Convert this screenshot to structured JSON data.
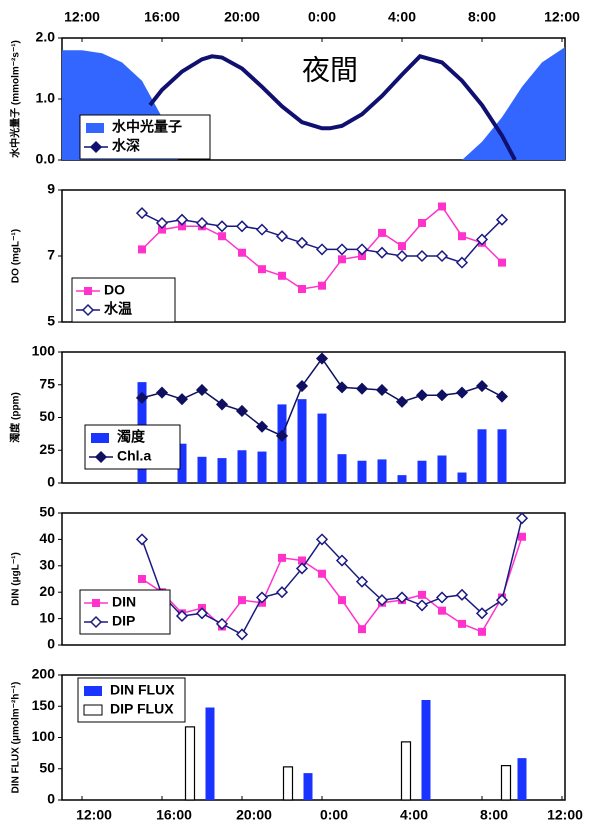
{
  "chart_data": [
    {
      "type": "combo",
      "title": "夜間",
      "ylabel": "水中光量子 (mmolm⁻²s⁻¹)",
      "xlim": [
        -1,
        24.15
      ],
      "xticks": [
        {
          "value": 0,
          "label": "12:00"
        },
        {
          "value": 4,
          "label": "16:00"
        },
        {
          "value": 8,
          "label": "20:00"
        },
        {
          "value": 12,
          "label": "0:00"
        },
        {
          "value": 16,
          "label": "4:00"
        },
        {
          "value": 20,
          "label": "8:00"
        },
        {
          "value": 24,
          "label": "12:00"
        }
      ],
      "ylim": [
        0,
        2
      ],
      "yticks": [
        {
          "value": 0,
          "label": "0.0"
        },
        {
          "value": 1,
          "label": "1.0"
        },
        {
          "value": 2,
          "label": "2.0"
        }
      ],
      "series": [
        {
          "name": "水中光量子",
          "type": "area",
          "color": "#3366ff",
          "marker": "none",
          "x": [
            -1,
            0,
            1,
            2,
            3,
            3.5,
            4,
            4.5,
            4.8,
            12,
            19,
            20,
            21,
            22,
            23,
            24.15
          ],
          "values": [
            1.8,
            1.8,
            1.75,
            1.6,
            1.3,
            1.0,
            0.7,
            0.3,
            0,
            null,
            0,
            0.3,
            0.7,
            1.2,
            1.6,
            1.85
          ]
        },
        {
          "name": "水深",
          "type": "line",
          "color": "#101070",
          "marker": "none",
          "x": [
            3.4,
            4,
            5,
            6,
            6.5,
            7,
            8,
            9,
            10,
            11,
            12,
            12.4,
            13,
            14,
            15,
            16,
            16.9,
            18,
            19,
            20,
            21,
            21.65
          ],
          "values": [
            0.9,
            1.15,
            1.45,
            1.65,
            1.7,
            1.68,
            1.5,
            1.2,
            0.88,
            0.62,
            0.52,
            0.52,
            0.56,
            0.75,
            1.05,
            1.4,
            1.7,
            1.6,
            1.3,
            0.9,
            0.4,
            0
          ]
        }
      ]
    },
    {
      "type": "line",
      "ylabel": "DO (mgL⁻¹)",
      "xlim": [
        -1,
        24.15
      ],
      "x": [
        3,
        4,
        5,
        6,
        7,
        8,
        9,
        10,
        11,
        12,
        13,
        14,
        15,
        16,
        17,
        18,
        19,
        20,
        21
      ],
      "ylim": [
        5,
        9
      ],
      "yticks": [
        5,
        7,
        9
      ],
      "series": [
        {
          "name": "DO",
          "type": "line",
          "color": "#ff33cc",
          "marker": "square",
          "values": [
            7.2,
            7.8,
            7.9,
            7.9,
            7.6,
            7.1,
            6.6,
            6.4,
            6.0,
            6.1,
            6.9,
            7.0,
            7.7,
            7.3,
            8.0,
            8.5,
            7.6,
            7.4,
            6.8
          ]
        },
        {
          "name": "水温",
          "type": "line",
          "color": "#1a1a80",
          "marker": "diamond-open",
          "values": [
            8.3,
            8.0,
            8.1,
            8.0,
            7.9,
            7.9,
            7.8,
            7.6,
            7.4,
            7.2,
            7.2,
            7.2,
            7.1,
            7.0,
            7.0,
            7.0,
            6.8,
            7.5,
            8.1
          ]
        }
      ]
    },
    {
      "type": "combo",
      "ylabel": "濁度 (ppm)",
      "xlim": [
        -1,
        24.15
      ],
      "x": [
        3,
        4,
        5,
        6,
        7,
        8,
        9,
        10,
        11,
        12,
        13,
        14,
        15,
        16,
        17,
        18,
        19,
        20,
        21
      ],
      "ylim": [
        0,
        100
      ],
      "yticks": [
        0,
        25,
        50,
        75,
        100
      ],
      "series": [
        {
          "name": "濁度",
          "type": "bar",
          "color": "#1a33ff",
          "marker": "none",
          "values": [
            77,
            null,
            30,
            20,
            19,
            25,
            24,
            60,
            64,
            53,
            22,
            17,
            18,
            6,
            17,
            21,
            8,
            41,
            41
          ]
        },
        {
          "name": "Chl.a",
          "type": "line",
          "color": "#101060",
          "marker": "diamond",
          "values": [
            65,
            69,
            64,
            71,
            60,
            55,
            43,
            36,
            74,
            95,
            73,
            72,
            71,
            62,
            67,
            67,
            69,
            74,
            66
          ]
        }
      ]
    },
    {
      "type": "line",
      "ylabel": "DIN (μgL⁻¹)",
      "xlim": [
        -1,
        24.15
      ],
      "x": [
        3,
        4,
        5,
        6,
        7,
        8,
        9,
        10,
        11,
        12,
        13,
        14,
        15,
        16,
        17,
        18,
        19,
        20,
        21,
        22
      ],
      "ylim": [
        0,
        50
      ],
      "yticks": [
        0,
        10,
        20,
        30,
        40,
        50
      ],
      "series": [
        {
          "name": "DIN",
          "type": "line",
          "color": "#ff33cc",
          "marker": "square",
          "values": [
            25,
            20,
            12,
            14,
            7,
            17,
            16,
            33,
            32,
            27,
            17,
            6,
            16,
            17,
            19,
            13,
            8,
            5,
            18,
            41
          ]
        },
        {
          "name": "DIP",
          "type": "line",
          "color": "#1a1a80",
          "marker": "diamond-open",
          "values": [
            40,
            19,
            11,
            12,
            8,
            4,
            18,
            20,
            29,
            40,
            32,
            24,
            17,
            18,
            15,
            18,
            19,
            12,
            17,
            48
          ]
        }
      ]
    },
    {
      "type": "bar",
      "ylabel": "DIN FLUX (μmolm⁻²h⁻¹)",
      "xlim": [
        -1,
        24.15
      ],
      "xticks": [
        {
          "value": 0,
          "label": "12:00"
        },
        {
          "value": 4,
          "label": "16:00"
        },
        {
          "value": 8,
          "label": "20:00"
        },
        {
          "value": 12,
          "label": "0:00"
        },
        {
          "value": 16,
          "label": "4:00"
        },
        {
          "value": 20,
          "label": "8:00"
        },
        {
          "value": 24,
          "label": "12:00"
        }
      ],
      "ylim": [
        0,
        200
      ],
      "yticks": [
        0,
        50,
        100,
        150,
        200
      ],
      "series": [
        {
          "name": "DIN FLUX",
          "type": "bar",
          "color": "#1a33ff",
          "marker": "none",
          "x": [
            6.4,
            11.3,
            17.2,
            22.0
          ],
          "values": [
            148,
            43,
            160,
            67
          ]
        },
        {
          "name": "DIP FLUX",
          "type": "bar",
          "color": "#ffffff",
          "marker": "none",
          "x": [
            5.4,
            10.3,
            16.2,
            21.2
          ],
          "values": [
            117,
            53,
            93,
            55
          ]
        }
      ]
    }
  ]
}
